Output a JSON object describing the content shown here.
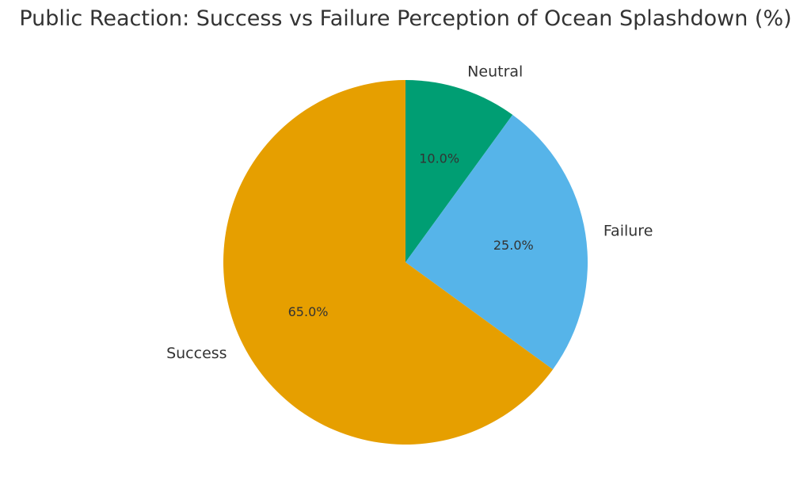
{
  "chart_data": {
    "type": "pie",
    "title": "Public Reaction: Success vs Failure Perception of Ocean Splashdown (%)",
    "slices": [
      {
        "label": "Neutral",
        "value": 10.0,
        "pct_label": "10.0%",
        "color": "#009E73"
      },
      {
        "label": "Failure",
        "value": 25.0,
        "pct_label": "25.0%",
        "color": "#56B4E9"
      },
      {
        "label": "Success",
        "value": 65.0,
        "pct_label": "65.0%",
        "color": "#E69F00"
      }
    ],
    "start": "top",
    "direction": "clockwise",
    "legend": "none"
  }
}
